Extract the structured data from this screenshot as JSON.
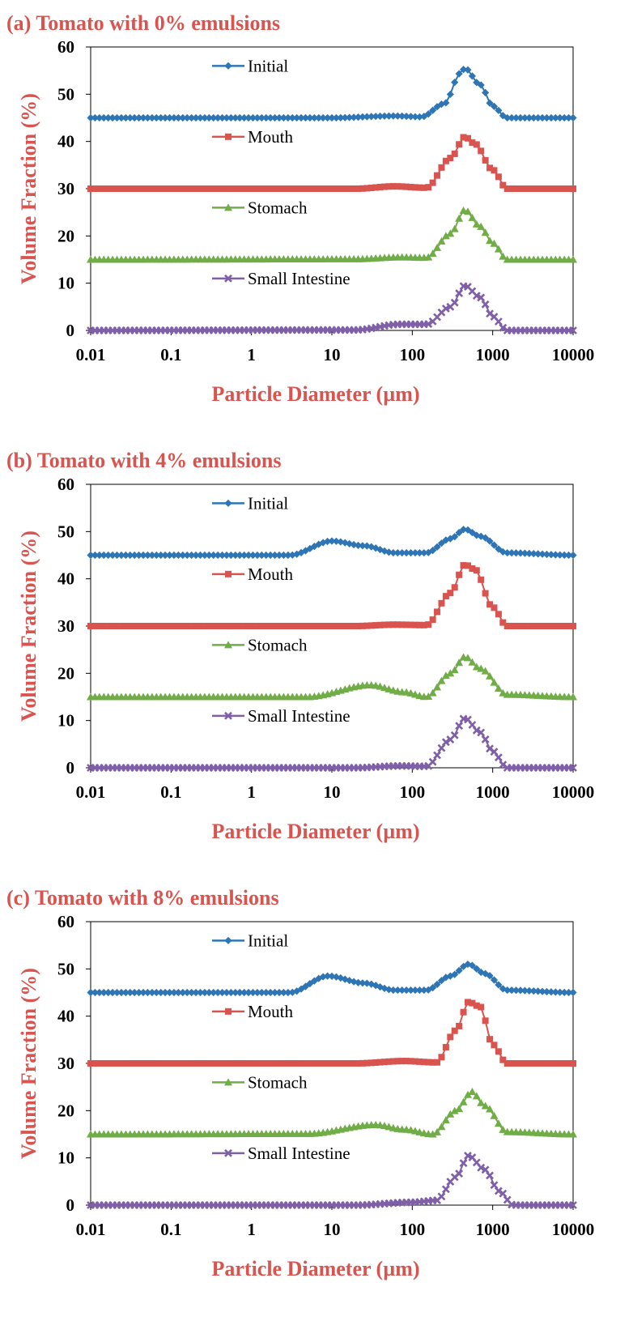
{
  "colors": {
    "title": "#d9534f",
    "axis_label": "#d9534f",
    "initial": "#2e75b6",
    "mouth": "#d9534f",
    "stomach": "#70ad47",
    "small_intestine": "#7f5fa8"
  },
  "chart_data": [
    {
      "type": "line",
      "title": "(a) Tomato with 0% emulsions",
      "xlabel": "Particle Diameter (µm)",
      "ylabel": "Volume Fraction (%)",
      "xscale": "log",
      "xlim": [
        0.01,
        10000
      ],
      "ylim": [
        0,
        60
      ],
      "xticks": [
        "0.01",
        "0.1",
        "1",
        "10",
        "100",
        "1000",
        "10000"
      ],
      "yticks": [
        "0",
        "10",
        "20",
        "30",
        "40",
        "50",
        "60"
      ],
      "grid": false,
      "legend": "inline labels",
      "series": [
        {
          "name": "Initial",
          "marker": "diamond",
          "baseline": 45,
          "points": [
            [
              0.01,
              45
            ],
            [
              10,
              45
            ],
            [
              60,
              45.4
            ],
            [
              130,
              45.2
            ],
            [
              250,
              48
            ],
            [
              400,
              54.5
            ],
            [
              450,
              55.5
            ],
            [
              700,
              52
            ],
            [
              1000,
              47.5
            ],
            [
              1500,
              45
            ],
            [
              10000,
              45
            ]
          ]
        },
        {
          "name": "Mouth",
          "marker": "square",
          "baseline": 30,
          "points": [
            [
              0.01,
              30
            ],
            [
              20,
              30
            ],
            [
              60,
              30.5
            ],
            [
              150,
              30.2
            ],
            [
              300,
              36.5
            ],
            [
              450,
              41
            ],
            [
              600,
              39.5
            ],
            [
              1000,
              34
            ],
            [
              1500,
              30
            ],
            [
              10000,
              30
            ]
          ]
        },
        {
          "name": "Stomach",
          "marker": "triangle",
          "baseline": 15,
          "points": [
            [
              0.01,
              15
            ],
            [
              20,
              15.1
            ],
            [
              70,
              15.5
            ],
            [
              150,
              15.4
            ],
            [
              300,
              20.5
            ],
            [
              450,
              25.5
            ],
            [
              700,
              22
            ],
            [
              1000,
              18.5
            ],
            [
              1500,
              15
            ],
            [
              10000,
              15
            ]
          ]
        },
        {
          "name": "Small Intestine",
          "marker": "x",
          "baseline": 0,
          "points": [
            [
              0.01,
              0
            ],
            [
              20,
              0.1
            ],
            [
              70,
              1.3
            ],
            [
              150,
              1.3
            ],
            [
              300,
              5
            ],
            [
              450,
              9.5
            ],
            [
              700,
              7
            ],
            [
              1000,
              3
            ],
            [
              1500,
              0
            ],
            [
              10000,
              0
            ]
          ]
        }
      ]
    },
    {
      "type": "line",
      "title": "(b) Tomato with 4% emulsions",
      "xlabel": "Particle Diameter (µm)",
      "ylabel": "Volume Fraction (%)",
      "xscale": "log",
      "xlim": [
        0.01,
        10000
      ],
      "ylim": [
        0,
        60
      ],
      "xticks": [
        "0.01",
        "0.1",
        "1",
        "10",
        "100",
        "1000",
        "10000"
      ],
      "yticks": [
        "0",
        "10",
        "20",
        "30",
        "40",
        "50",
        "60"
      ],
      "grid": false,
      "legend": "inline labels",
      "series": [
        {
          "name": "Initial",
          "marker": "diamond",
          "baseline": 45,
          "points": [
            [
              0.01,
              45
            ],
            [
              3,
              45
            ],
            [
              10,
              48
            ],
            [
              25,
              47
            ],
            [
              60,
              45.5
            ],
            [
              150,
              45.5
            ],
            [
              300,
              48.5
            ],
            [
              450,
              50.5
            ],
            [
              700,
              49
            ],
            [
              1500,
              45.5
            ],
            [
              10000,
              45
            ]
          ]
        },
        {
          "name": "Mouth",
          "marker": "square",
          "baseline": 30,
          "points": [
            [
              0.01,
              30
            ],
            [
              20,
              30
            ],
            [
              60,
              30.3
            ],
            [
              150,
              30.2
            ],
            [
              300,
              37
            ],
            [
              450,
              43
            ],
            [
              600,
              42
            ],
            [
              1000,
              34
            ],
            [
              1500,
              30
            ],
            [
              10000,
              30
            ]
          ]
        },
        {
          "name": "Stomach",
          "marker": "triangle",
          "baseline": 15,
          "points": [
            [
              0.01,
              15
            ],
            [
              5,
              15
            ],
            [
              30,
              17.5
            ],
            [
              80,
              16
            ],
            [
              150,
              15
            ],
            [
              300,
              20
            ],
            [
              450,
              23.5
            ],
            [
              700,
              21
            ],
            [
              1500,
              15.5
            ],
            [
              10000,
              15
            ]
          ]
        },
        {
          "name": "Small Intestine",
          "marker": "x",
          "baseline": 0,
          "points": [
            [
              0.01,
              0
            ],
            [
              20,
              0
            ],
            [
              70,
              0.4
            ],
            [
              150,
              0.3
            ],
            [
              300,
              6
            ],
            [
              450,
              10.5
            ],
            [
              700,
              7.5
            ],
            [
              1000,
              3.5
            ],
            [
              1500,
              0
            ],
            [
              10000,
              0
            ]
          ]
        }
      ]
    },
    {
      "type": "line",
      "title": "(c) Tomato with 8% emulsions",
      "xlabel": "Particle Diameter (µm)",
      "ylabel": "Volume Fraction (%)",
      "xscale": "log",
      "xlim": [
        0.01,
        10000
      ],
      "ylim": [
        0,
        60
      ],
      "xticks": [
        "0.01",
        "0.1",
        "1",
        "10",
        "100",
        "1000",
        "10000"
      ],
      "yticks": [
        "0",
        "10",
        "20",
        "30",
        "40",
        "50",
        "60"
      ],
      "grid": false,
      "legend": "inline labels",
      "series": [
        {
          "name": "Initial",
          "marker": "diamond",
          "baseline": 45,
          "points": [
            [
              0.01,
              45
            ],
            [
              3,
              45
            ],
            [
              9,
              48.5
            ],
            [
              25,
              47
            ],
            [
              60,
              45.5
            ],
            [
              150,
              45.5
            ],
            [
              300,
              48.5
            ],
            [
              500,
              51
            ],
            [
              800,
              49
            ],
            [
              1500,
              45.5
            ],
            [
              10000,
              45
            ]
          ]
        },
        {
          "name": "Mouth",
          "marker": "square",
          "baseline": 30,
          "points": [
            [
              0.01,
              30
            ],
            [
              20,
              30
            ],
            [
              80,
              30.5
            ],
            [
              200,
              30.2
            ],
            [
              350,
              37
            ],
            [
              500,
              43
            ],
            [
              700,
              42
            ],
            [
              1000,
              34
            ],
            [
              1500,
              30
            ],
            [
              10000,
              30
            ]
          ]
        },
        {
          "name": "Stomach",
          "marker": "triangle",
          "baseline": 15,
          "points": [
            [
              0.01,
              15
            ],
            [
              5,
              15.1
            ],
            [
              35,
              17
            ],
            [
              80,
              16
            ],
            [
              180,
              15
            ],
            [
              350,
              20
            ],
            [
              550,
              24
            ],
            [
              800,
              21
            ],
            [
              1500,
              15.5
            ],
            [
              10000,
              15
            ]
          ]
        },
        {
          "name": "Small Intestine",
          "marker": "x",
          "baseline": 0,
          "points": [
            [
              0.01,
              0
            ],
            [
              20,
              0
            ],
            [
              100,
              0.6
            ],
            [
              200,
              1
            ],
            [
              350,
              6
            ],
            [
              500,
              10.5
            ],
            [
              800,
              7.5
            ],
            [
              1200,
              3
            ],
            [
              1800,
              0
            ],
            [
              10000,
              0
            ]
          ]
        }
      ]
    }
  ]
}
